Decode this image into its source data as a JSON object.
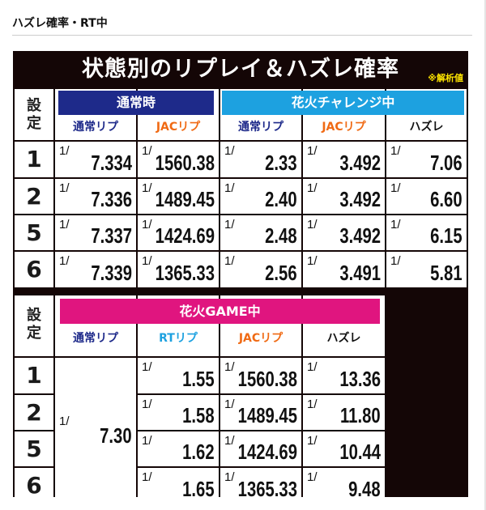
{
  "heading": "ハズレ確率・RT中",
  "table": {
    "title": "状態別のリプレイ＆ハズレ確率",
    "note": "※解析値",
    "setting_label": "設定",
    "section1": {
      "groups": [
        {
          "label": "通常時",
          "color": "#1e2a8a"
        },
        {
          "label": "花火チャレンジ中",
          "color": "#1da1e0"
        }
      ],
      "columns": [
        {
          "label": "通常リプ",
          "color": "#1e2a8a"
        },
        {
          "label": "JACリプ",
          "color": "#f06a14"
        },
        {
          "label": "通常リプ",
          "color": "#1e2a8a"
        },
        {
          "label": "JACリプ",
          "color": "#f06a14"
        },
        {
          "label": "ハズレ",
          "color": "#111111"
        }
      ],
      "rows": [
        {
          "setting": "1",
          "values": [
            "7.334",
            "1560.38",
            "2.33",
            "3.492",
            "7.06"
          ]
        },
        {
          "setting": "2",
          "values": [
            "7.336",
            "1489.45",
            "2.40",
            "3.492",
            "6.60"
          ]
        },
        {
          "setting": "5",
          "values": [
            "7.337",
            "1424.69",
            "2.48",
            "3.492",
            "6.15"
          ]
        },
        {
          "setting": "6",
          "values": [
            "7.339",
            "1365.33",
            "2.56",
            "3.491",
            "5.81"
          ]
        }
      ]
    },
    "section2": {
      "group": {
        "label": "花火GAME中",
        "color": "#e0157f"
      },
      "columns": [
        {
          "label": "通常リプ",
          "color": "#1e2a8a"
        },
        {
          "label": "RTリプ",
          "color": "#1da1e0"
        },
        {
          "label": "JACリプ",
          "color": "#f06a14"
        },
        {
          "label": "ハズレ",
          "color": "#111111"
        }
      ],
      "merged_normal": "7.30",
      "rows": [
        {
          "setting": "1",
          "values": [
            "1.55",
            "1560.38",
            "13.36"
          ]
        },
        {
          "setting": "2",
          "values": [
            "1.58",
            "1489.45",
            "11.80"
          ]
        },
        {
          "setting": "5",
          "values": [
            "1.62",
            "1424.69",
            "10.44"
          ]
        },
        {
          "setting": "6",
          "values": [
            "1.65",
            "1365.33",
            "9.48"
          ]
        }
      ]
    },
    "fraction_prefix": "1/"
  }
}
